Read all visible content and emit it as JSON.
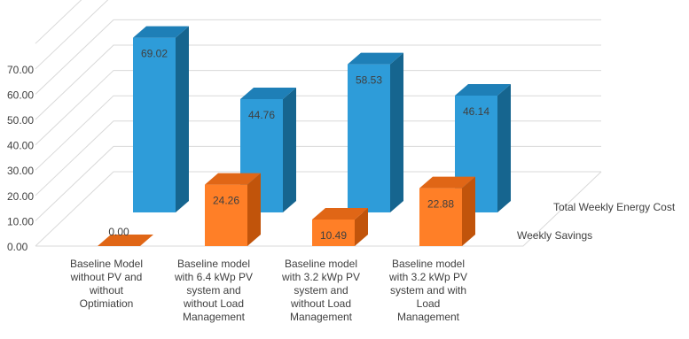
{
  "chart_data": {
    "type": "bar",
    "view": "3d-clustered-columns",
    "categories": [
      [
        "Baseline Model",
        "without PV and",
        "without",
        "Optimiation"
      ],
      [
        "Baseline model",
        "with 6.4 kWp PV",
        "system and",
        "without Load",
        "Management"
      ],
      [
        "Baseline model",
        "with 3.2 kWp PV",
        "system and",
        "without Load",
        "Management"
      ],
      [
        "Baseline model",
        "with 3.2 kWp PV",
        "system and with",
        "Load",
        "Management"
      ]
    ],
    "series": [
      {
        "name": "Total Weekly Energy Cost",
        "values": [
          69.02,
          44.76,
          58.53,
          46.14
        ],
        "labels": [
          "69.02",
          "44.76",
          "58.53",
          "46.14"
        ],
        "color_front": "#2E9CD9",
        "color_top": "#1E7FB7",
        "color_side": "#16658F"
      },
      {
        "name": "Weekly Savings",
        "values": [
          0.0,
          24.26,
          10.49,
          22.88
        ],
        "labels": [
          "0.00",
          "24.26",
          "10.49",
          "22.88"
        ],
        "color_front": "#FF7F27",
        "color_top": "#E06616",
        "color_side": "#C1540B"
      }
    ],
    "yticks": [
      "0.00",
      "10.00",
      "20.00",
      "30.00",
      "40.00",
      "50.00",
      "60.00",
      "70.00"
    ],
    "ylim": [
      0,
      70
    ],
    "grid": true
  }
}
